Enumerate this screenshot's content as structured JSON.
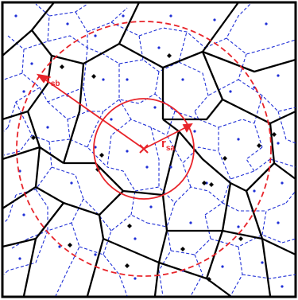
{
  "colors": {
    "coarse_edges": "#000000",
    "fine_edges": "#1f2fd6",
    "circles": "#e8242a",
    "seeds_coarse": "#000000",
    "seeds_fine": "#1f2fd6",
    "frame": "#000000"
  },
  "labels": {
    "rsb": {
      "main": "r",
      "sub": "sb"
    },
    "rsa": {
      "main": "r",
      "sub": "sa"
    }
  }
}
